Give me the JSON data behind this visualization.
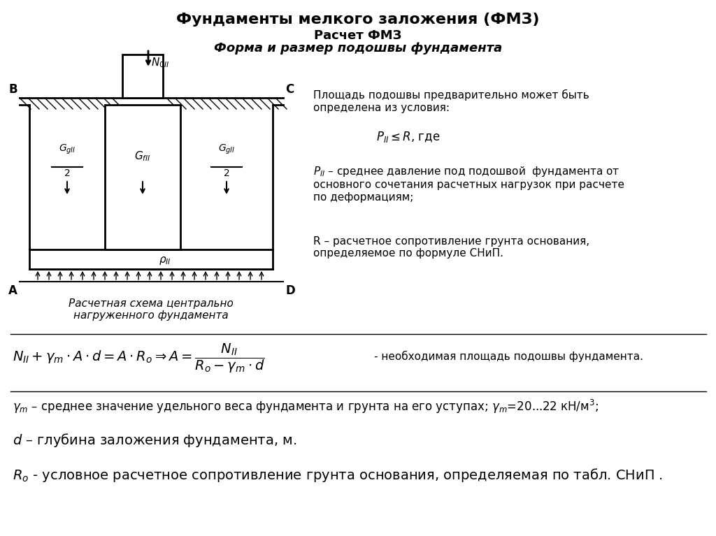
{
  "title_line1": "Фундаменты мелкого заложения (ФМЗ)",
  "title_line2": "Расчет ФМЗ",
  "title_line3": "Форма и размер подошвы фундамента",
  "caption": "Расчетная схема центрально\nнагруженного фундамента",
  "right_text1": "Площадь подошвы предварительно может быть\nопределена из условия:",
  "right_formula1": "$P_{II} \\leq R$, где",
  "right_text2": "$P_{II}$ – среднее давление под подошвой  фундамента от\nосновного сочетания расчетных нагрузок при расчете\nпо деформациям;",
  "right_text3": "R – расчетное сопротивление грунта основания,\nопределяемое по формуле СНиП.",
  "bottom_formula": "$N_{II} + \\gamma_m \\cdot A \\cdot d = A \\cdot R_o \\Rightarrow A = \\dfrac{N_{II}}{R_o - \\gamma_m \\cdot d}$",
  "bottom_formula_suffix": "- необходимая площадь подошвы фундамента.",
  "gamma_text": "$\\gamma_m$ – среднее значение удельного веса фундамента и грунта на его уступах; $\\gamma_m$=20...22 кН/м$^3$;",
  "d_text": "$d$ – глубина заложения фундамента, м.",
  "Ro_text": "$R_o$ - условное расчетное сопротивление грунта основания, определяемая по табл. СНиП .",
  "bg_color": "#ffffff",
  "fg_color": "#000000"
}
